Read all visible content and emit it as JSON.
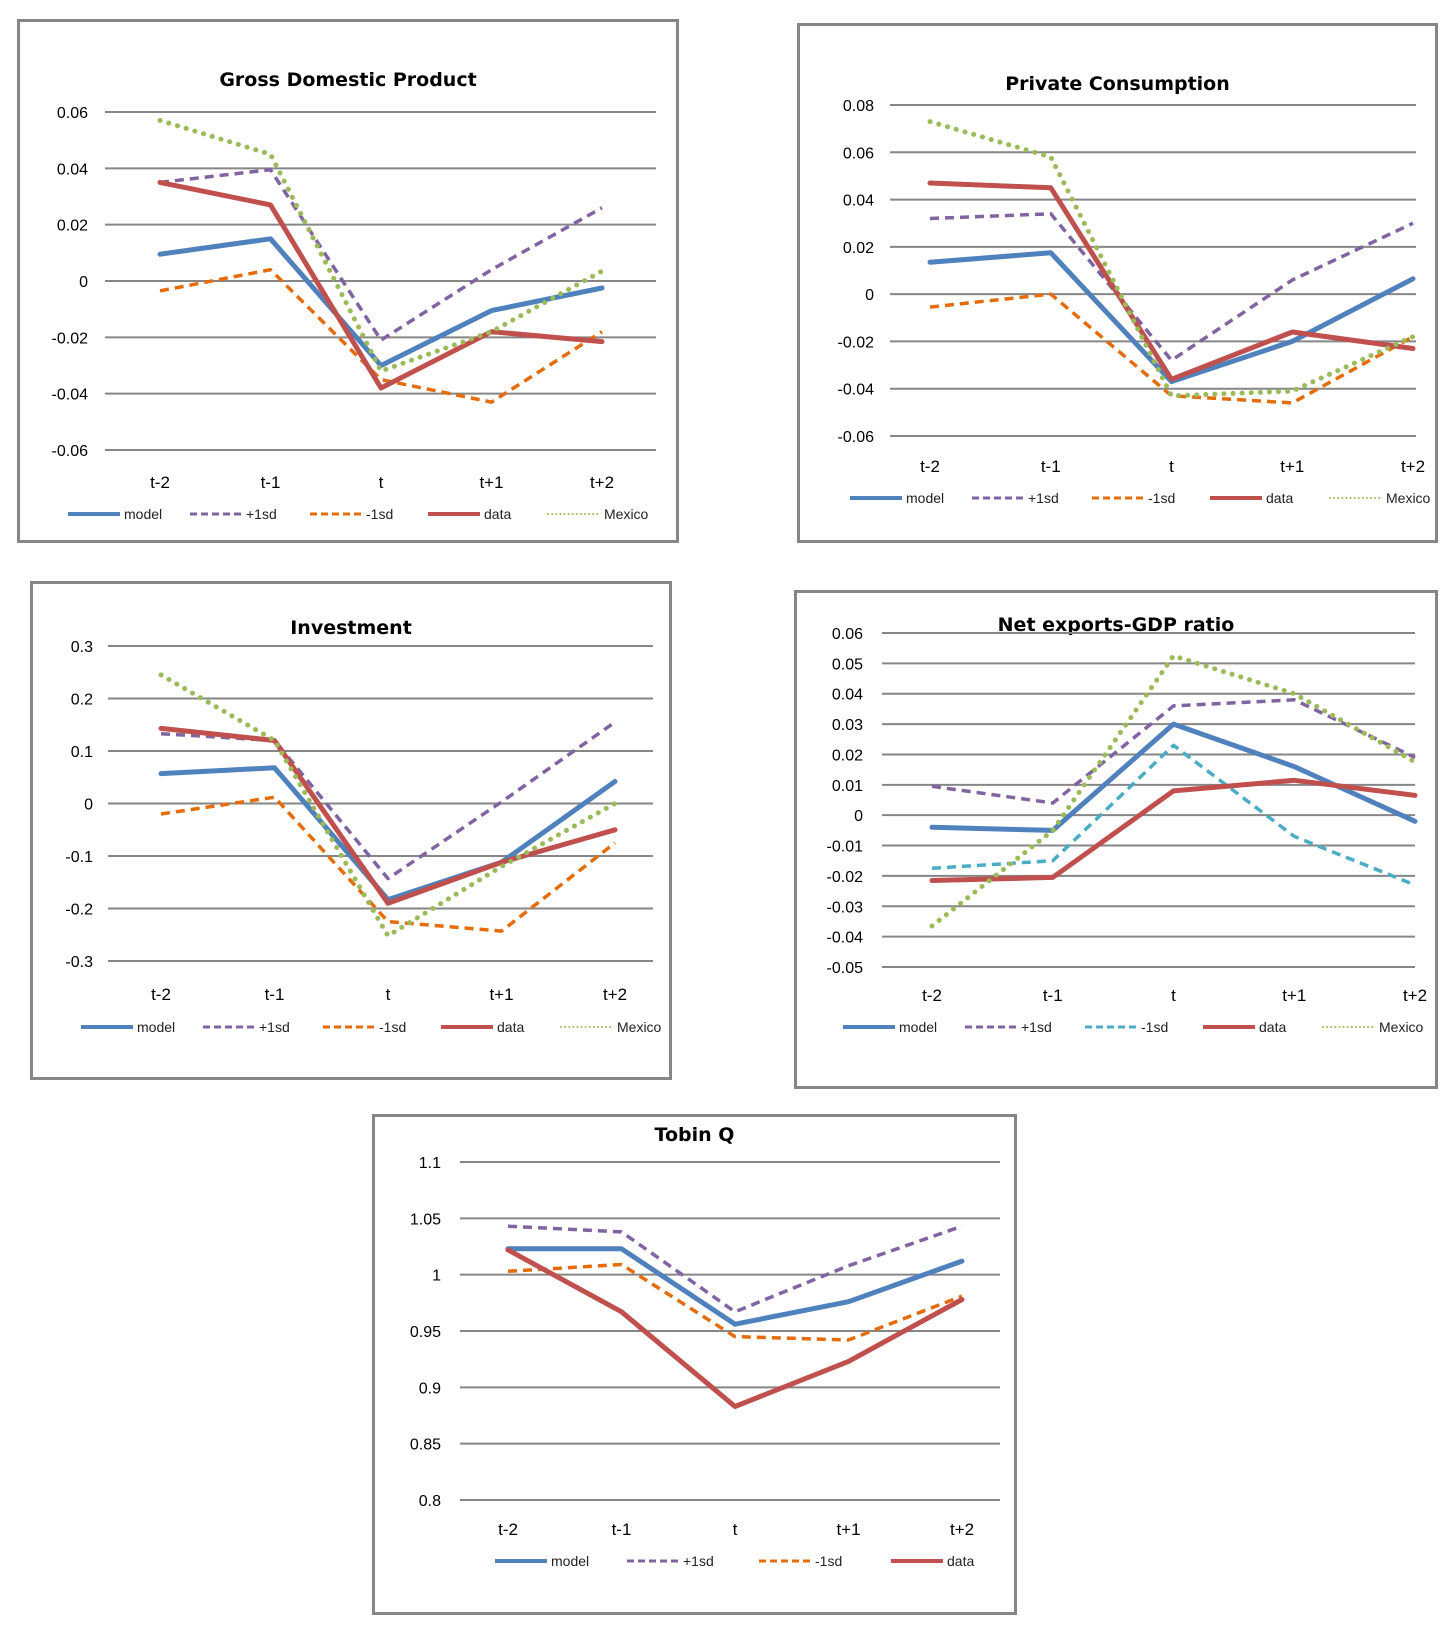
{
  "series_styles": {
    "model": {
      "label": "model",
      "color": "#4F81BD",
      "dash": "solid"
    },
    "plus1sd": {
      "label": "+1sd",
      "color": "#8064A2",
      "dash": "dash"
    },
    "minus1sd": {
      "label": "-1sd",
      "color": "#E46C0A",
      "dash": "dash"
    },
    "minus1sd_nx": {
      "label": "-1sd",
      "color": "#4BACC6",
      "dash": "dash"
    },
    "data": {
      "label": "data",
      "color": "#C0504D",
      "dash": "solid"
    },
    "mexico": {
      "label": "Mexico",
      "color": "#9BBB59",
      "dash": "dot"
    }
  },
  "chart_data": [
    {
      "id": "gdp",
      "type": "line",
      "title": "Gross Domestic Product",
      "categories": [
        "t-2",
        "t-1",
        "t",
        "t+1",
        "t+2"
      ],
      "yticks": [
        "0.06",
        "0.04",
        "0.02",
        "0",
        "-0.02",
        "-0.04",
        "-0.06"
      ],
      "ylim": [
        -0.06,
        0.06
      ],
      "grid": true,
      "legend": "bottom",
      "series": [
        {
          "key": "model",
          "name": "model",
          "values": [
            0.0095,
            0.015,
            -0.03,
            -0.0105,
            -0.0025
          ]
        },
        {
          "key": "plus1sd",
          "name": "+1sd",
          "values": [
            0.035,
            0.0395,
            -0.021,
            0.004,
            0.026
          ]
        },
        {
          "key": "minus1sd",
          "name": "-1sd",
          "values": [
            -0.0035,
            0.004,
            -0.035,
            -0.043,
            -0.018
          ]
        },
        {
          "key": "data",
          "name": "data",
          "values": [
            0.035,
            0.027,
            -0.038,
            -0.018,
            -0.0215
          ]
        },
        {
          "key": "mexico",
          "name": "Mexico",
          "values": [
            0.057,
            0.045,
            -0.032,
            -0.018,
            0.0035
          ]
        }
      ]
    },
    {
      "id": "pc",
      "type": "line",
      "title": "Private Consumption",
      "categories": [
        "t-2",
        "t-1",
        "t",
        "t+1",
        "t+2"
      ],
      "yticks": [
        "0.08",
        "0.06",
        "0.04",
        "0.02",
        "0",
        "-0.02",
        "-0.04",
        "-0.06"
      ],
      "ylim": [
        -0.06,
        0.08
      ],
      "grid": true,
      "legend": "bottom",
      "series": [
        {
          "key": "model",
          "name": "model",
          "values": [
            0.0135,
            0.0175,
            -0.037,
            -0.02,
            0.0065
          ]
        },
        {
          "key": "plus1sd",
          "name": "+1sd",
          "values": [
            0.032,
            0.034,
            -0.028,
            0.006,
            0.03
          ]
        },
        {
          "key": "minus1sd",
          "name": "-1sd",
          "values": [
            -0.0055,
            0.0,
            -0.043,
            -0.046,
            -0.018
          ]
        },
        {
          "key": "data",
          "name": "data",
          "values": [
            0.047,
            0.045,
            -0.036,
            -0.016,
            -0.023
          ]
        },
        {
          "key": "mexico",
          "name": "Mexico",
          "values": [
            0.073,
            0.058,
            -0.043,
            -0.041,
            -0.018
          ]
        }
      ]
    },
    {
      "id": "inv",
      "type": "line",
      "title": "Investment",
      "categories": [
        "t-2",
        "t-1",
        "t",
        "t+1",
        "t+2"
      ],
      "yticks": [
        "0.3",
        "0.2",
        "0.1",
        "0",
        "-0.1",
        "-0.2",
        "-0.3"
      ],
      "ylim": [
        -0.3,
        0.3
      ],
      "grid": true,
      "legend": "bottom",
      "series": [
        {
          "key": "model",
          "name": "model",
          "values": [
            0.057,
            0.068,
            -0.183,
            -0.112,
            0.042
          ]
        },
        {
          "key": "plus1sd",
          "name": "+1sd",
          "values": [
            0.133,
            0.12,
            -0.143,
            0.003,
            0.155
          ]
        },
        {
          "key": "minus1sd",
          "name": "-1sd",
          "values": [
            -0.02,
            0.012,
            -0.225,
            -0.243,
            -0.075
          ]
        },
        {
          "key": "data",
          "name": "data",
          "values": [
            0.143,
            0.12,
            -0.19,
            -0.112,
            -0.05
          ]
        },
        {
          "key": "mexico",
          "name": "Mexico",
          "values": [
            0.245,
            0.12,
            -0.252,
            -0.12,
            0.0
          ]
        }
      ]
    },
    {
      "id": "nx",
      "type": "line",
      "title": "Net exports-GDP ratio",
      "categories": [
        "t-2",
        "t-1",
        "t",
        "t+1",
        "t+2"
      ],
      "yticks": [
        "0.06",
        "0.05",
        "0.04",
        "0.03",
        "0.02",
        "0.01",
        "0",
        "-0.01",
        "-0.02",
        "-0.03",
        "-0.04",
        "-0.05"
      ],
      "ylim": [
        -0.05,
        0.06
      ],
      "grid": true,
      "legend": "bottom",
      "series": [
        {
          "key": "model",
          "name": "model",
          "values": [
            -0.004,
            -0.005,
            0.03,
            0.016,
            -0.002
          ]
        },
        {
          "key": "plus1sd",
          "name": "+1sd",
          "values": [
            0.0095,
            0.004,
            0.036,
            0.038,
            0.019
          ]
        },
        {
          "key": "minus1sd_nx",
          "name": "-1sd",
          "values": [
            -0.0175,
            -0.015,
            0.023,
            -0.007,
            -0.023
          ]
        },
        {
          "key": "data",
          "name": "data",
          "values": [
            -0.0215,
            -0.0205,
            0.008,
            0.0115,
            0.0065
          ]
        },
        {
          "key": "mexico",
          "name": "Mexico",
          "values": [
            -0.0365,
            -0.005,
            0.0525,
            0.04,
            0.0175
          ]
        }
      ]
    },
    {
      "id": "tq",
      "type": "line",
      "title": "Tobin Q",
      "categories": [
        "t-2",
        "t-1",
        "t",
        "t+1",
        "t+2"
      ],
      "yticks": [
        "1.1",
        "1.05",
        "1",
        "0.95",
        "0.9",
        "0.85",
        "0.8"
      ],
      "ylim": [
        0.8,
        1.1
      ],
      "grid": true,
      "legend": "bottom",
      "series": [
        {
          "key": "model",
          "name": "model",
          "values": [
            1.023,
            1.023,
            0.956,
            0.976,
            1.012
          ]
        },
        {
          "key": "plus1sd",
          "name": "+1sd",
          "values": [
            1.043,
            1.038,
            0.967,
            1.008,
            1.043
          ]
        },
        {
          "key": "minus1sd",
          "name": "-1sd",
          "values": [
            1.003,
            1.009,
            0.945,
            0.942,
            0.981
          ]
        },
        {
          "key": "data",
          "name": "data",
          "values": [
            1.022,
            0.967,
            0.883,
            0.923,
            0.978
          ]
        }
      ]
    }
  ]
}
